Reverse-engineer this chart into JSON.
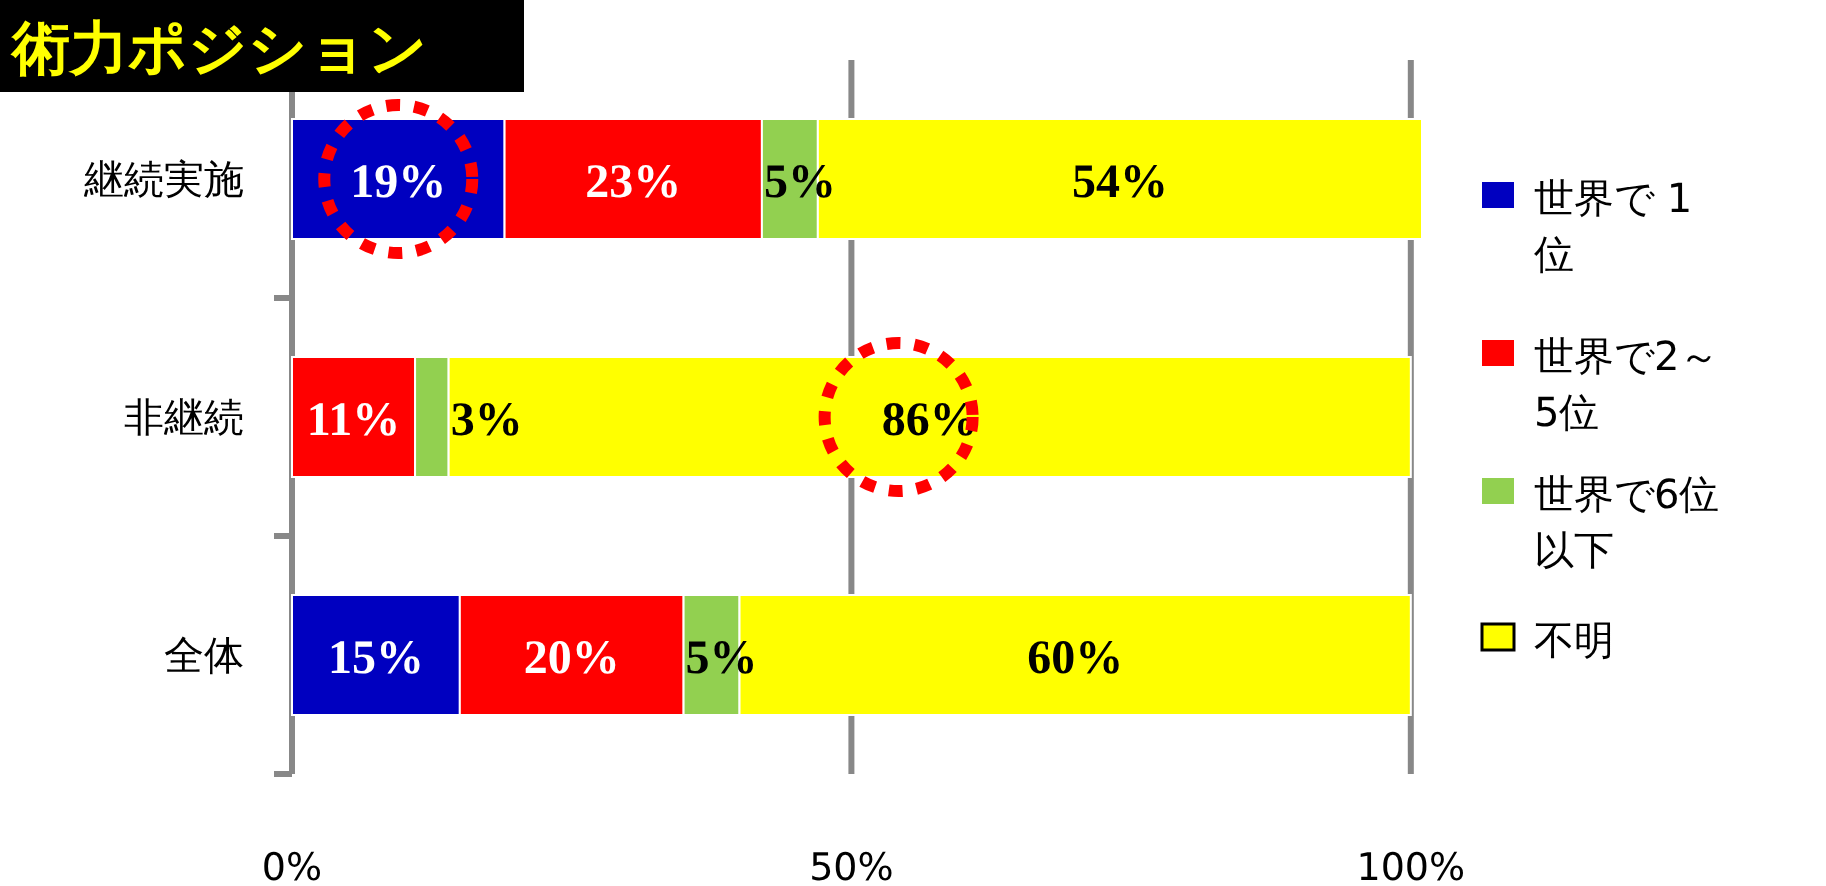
{
  "chart_data": {
    "type": "bar",
    "orientation": "horizontal",
    "stacked": true,
    "title": "術力ポジション",
    "categories": [
      "継続実施",
      "非継続",
      "全体"
    ],
    "series": [
      {
        "name": "世界で 1位",
        "color": "#0000c0",
        "values": [
          19,
          null,
          15
        ],
        "value_labels": [
          "19%",
          null,
          "15%"
        ]
      },
      {
        "name": "世界で2～5位",
        "color": "#ff0000",
        "values": [
          23,
          11,
          20
        ],
        "value_labels": [
          "23%",
          "11%",
          "20%"
        ]
      },
      {
        "name": "世界で6位以下",
        "color": "#92d050",
        "values": [
          5,
          3,
          5
        ],
        "value_labels": [
          "5%",
          "3%",
          "5%"
        ]
      },
      {
        "name": "不明",
        "color": "#ffff00",
        "values": [
          54,
          86,
          60
        ],
        "value_labels": [
          "54%",
          "86%",
          "60%"
        ]
      }
    ],
    "xlim": [
      0,
      101
    ],
    "xticks": [
      {
        "value": 0,
        "label": "0%"
      },
      {
        "value": 50,
        "label": "50%"
      },
      {
        "value": 100,
        "label": "100%"
      }
    ],
    "grid": "x",
    "legend": "right"
  }
}
